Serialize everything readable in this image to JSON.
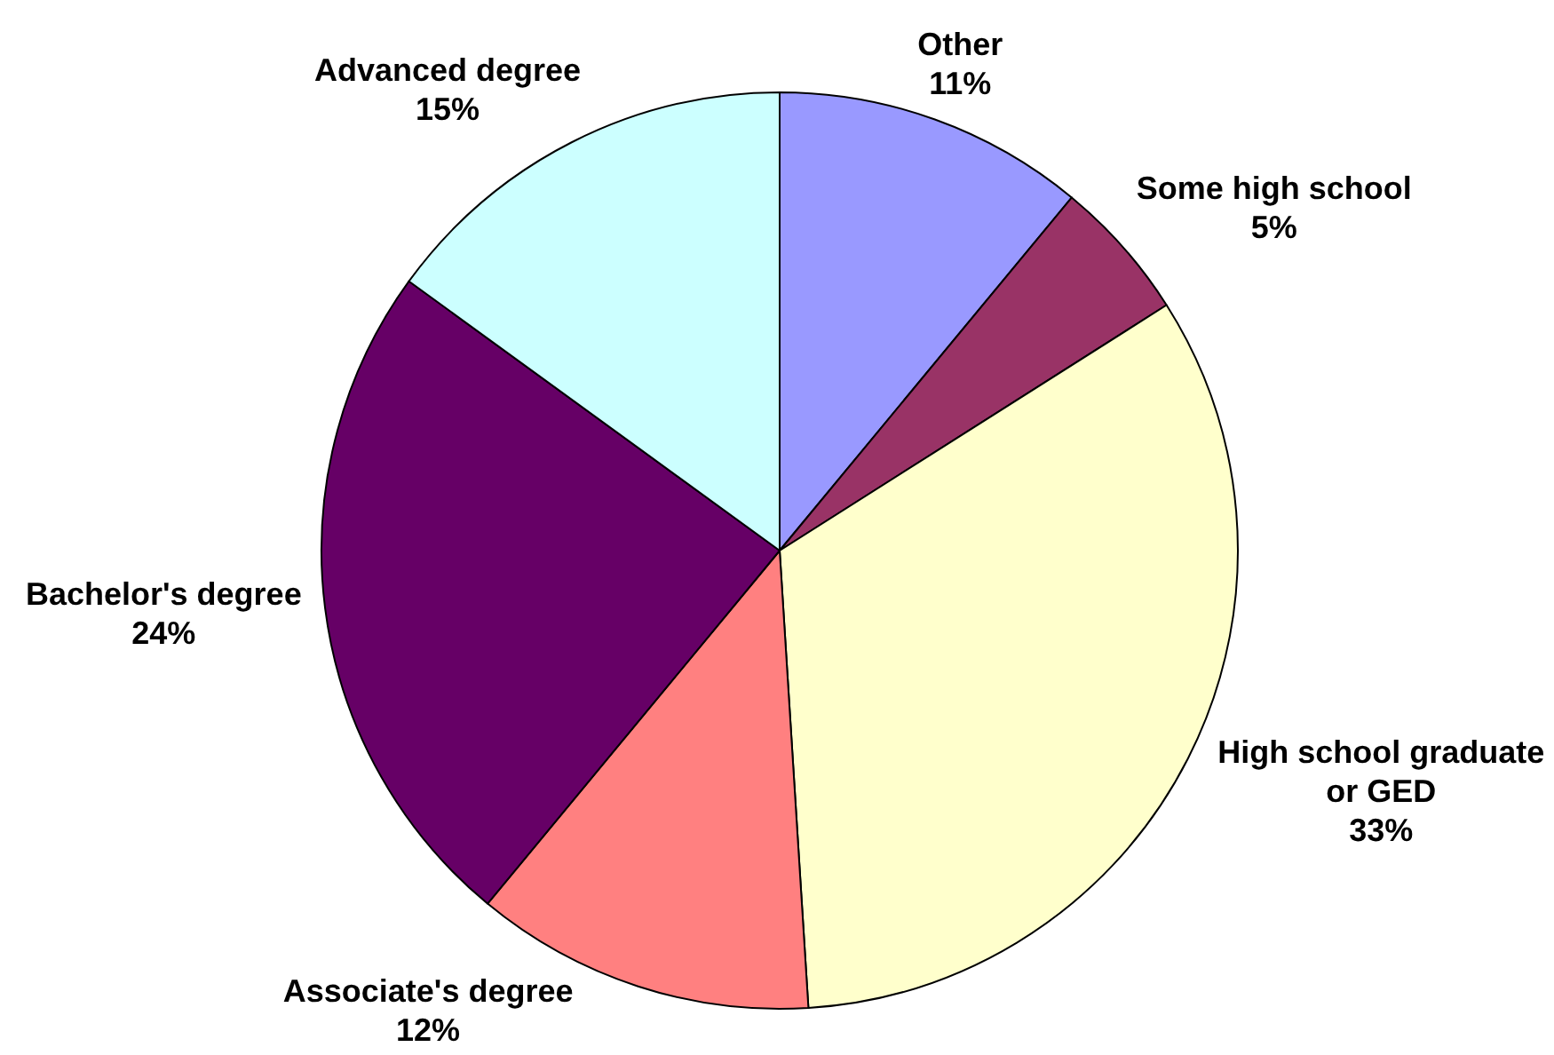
{
  "chart_data": {
    "type": "pie",
    "categories": [
      "Other",
      "Some high school",
      "High school graduate or GED",
      "Associate's degree",
      "Bachelor's degree",
      "Advanced degree"
    ],
    "values": [
      11,
      5,
      33,
      12,
      24,
      15
    ],
    "colors": [
      "#9999ff",
      "#993366",
      "#ffffcc",
      "#ff8080",
      "#660066",
      "#ccffff"
    ],
    "value_labels": [
      "11%",
      "5%",
      "33%",
      "12%",
      "24%",
      "15%"
    ]
  }
}
